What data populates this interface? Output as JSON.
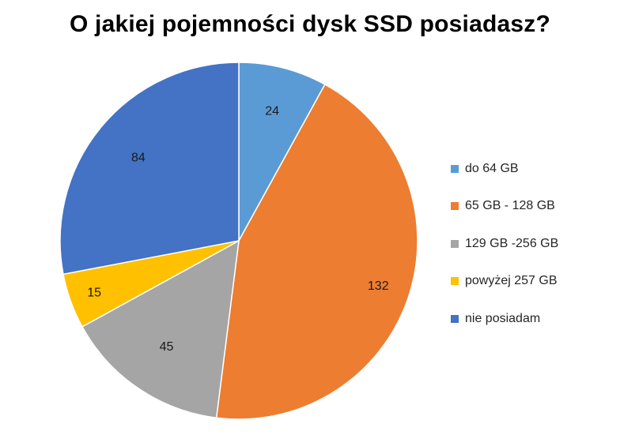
{
  "chart_data": {
    "type": "pie",
    "title": "O jakiej pojemności dysk SSD posiadasz?",
    "categories": [
      "do 64 GB",
      "65 GB - 128 GB",
      "129 GB -256 GB",
      "powyżej 257 GB",
      "nie posiadam"
    ],
    "values": [
      24,
      132,
      45,
      15,
      84
    ],
    "colors": [
      "#5b9bd5",
      "#ed7d31",
      "#a5a5a5",
      "#ffc000",
      "#4472c4"
    ],
    "data_labels": [
      "24",
      "132",
      "45",
      "15",
      "84"
    ],
    "start_angle_deg": 0,
    "direction": "clockwise",
    "legend_position": "right"
  }
}
